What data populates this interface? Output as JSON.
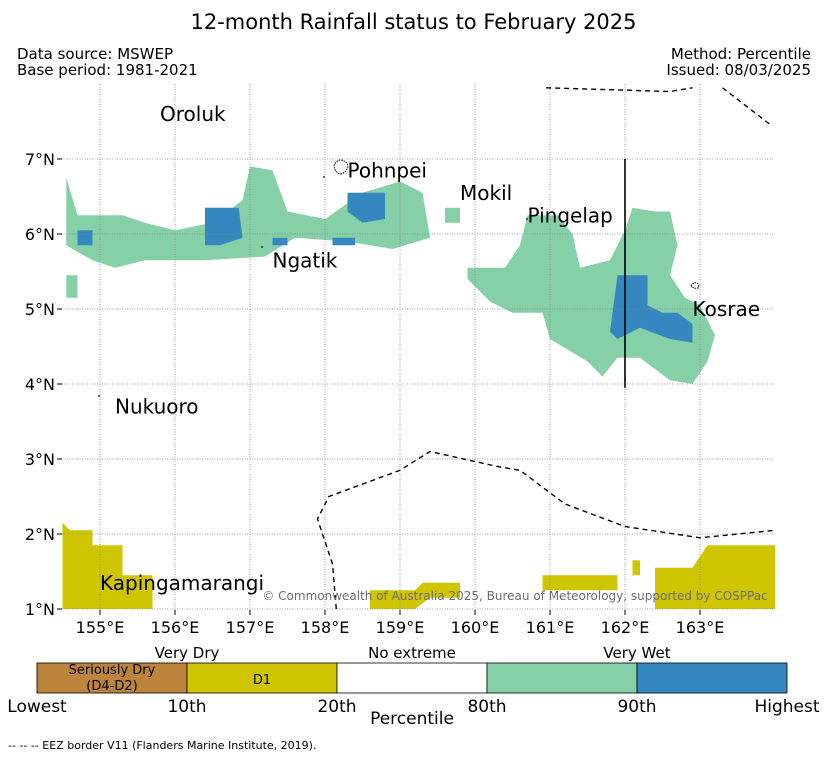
{
  "title": "12-month Rainfall status to February 2025",
  "data_source": "Data source: MSWEP",
  "base_period": "Base period: 1981-2021",
  "method": "Method: Percentile",
  "issued": "Issued: 08/03/2025",
  "copyright": "© Commonwealth of Australia 2025, Bureau of Meteorology, supported by COSPPac",
  "footnote": "--  --  -- EEZ border V11 (Flanders Marine Institute, 2019).",
  "map": {
    "lon_range": [
      154.5,
      164.0
    ],
    "lat_range": [
      0.95,
      7.95
    ],
    "lon_ticks": [
      155,
      156,
      157,
      158,
      159,
      160,
      161,
      162,
      163
    ],
    "lon_tick_labels": [
      "155°E",
      "156°E",
      "157°E",
      "158°E",
      "159°E",
      "160°E",
      "161°E",
      "162°E",
      "163°E"
    ],
    "lat_ticks": [
      1,
      2,
      3,
      4,
      5,
      6,
      7
    ],
    "lat_tick_labels": [
      "1°N",
      "2°N",
      "3°N",
      "4°N",
      "5°N",
      "6°N",
      "7°N"
    ],
    "places": [
      {
        "name": "Oroluk",
        "lon": 155.8,
        "lat": 7.6
      },
      {
        "name": "Pohnpei",
        "lon": 158.3,
        "lat": 6.85
      },
      {
        "name": "Mokil",
        "lon": 159.8,
        "lat": 6.55
      },
      {
        "name": "Pingelap",
        "lon": 160.7,
        "lat": 6.25
      },
      {
        "name": "Ngatik",
        "lon": 157.3,
        "lat": 5.65
      },
      {
        "name": "Kosrae",
        "lon": 162.9,
        "lat": 5.0
      },
      {
        "name": "Nukuoro",
        "lon": 155.2,
        "lat": 3.7
      },
      {
        "name": "Kapingamarangi",
        "lon": 155.0,
        "lat": 1.35
      }
    ],
    "rainfall_regions": [
      {
        "category": "80th",
        "color": "#86d0a8",
        "polygon": [
          [
            154.55,
            6.75
          ],
          [
            154.7,
            6.25
          ],
          [
            155.3,
            6.25
          ],
          [
            155.6,
            6.15
          ],
          [
            156.0,
            6.05
          ],
          [
            156.5,
            6.15
          ],
          [
            156.9,
            6.45
          ],
          [
            157.0,
            6.9
          ],
          [
            157.3,
            6.85
          ],
          [
            157.5,
            6.3
          ],
          [
            158.0,
            6.2
          ],
          [
            158.5,
            6.55
          ],
          [
            159.0,
            6.7
          ],
          [
            159.3,
            6.55
          ],
          [
            159.4,
            5.95
          ],
          [
            158.9,
            5.8
          ],
          [
            158.3,
            5.9
          ],
          [
            157.6,
            5.95
          ],
          [
            157.2,
            5.7
          ],
          [
            156.4,
            5.65
          ],
          [
            155.6,
            5.65
          ],
          [
            155.2,
            5.55
          ],
          [
            154.9,
            5.65
          ],
          [
            154.55,
            5.85
          ]
        ]
      },
      {
        "category": "80th",
        "color": "#86d0a8",
        "polygon": [
          [
            154.55,
            5.45
          ],
          [
            154.7,
            5.45
          ],
          [
            154.7,
            5.15
          ],
          [
            154.55,
            5.15
          ]
        ]
      },
      {
        "category": "80th",
        "color": "#86d0a8",
        "polygon": [
          [
            159.6,
            6.35
          ],
          [
            159.8,
            6.35
          ],
          [
            159.8,
            6.15
          ],
          [
            159.6,
            6.15
          ]
        ]
      },
      {
        "category": "80th",
        "color": "#86d0a8",
        "polygon": [
          [
            159.9,
            5.55
          ],
          [
            160.4,
            5.55
          ],
          [
            160.6,
            5.85
          ],
          [
            160.7,
            6.25
          ],
          [
            161.1,
            6.25
          ],
          [
            161.3,
            6.0
          ],
          [
            161.4,
            5.55
          ],
          [
            161.8,
            5.65
          ],
          [
            162.0,
            6.05
          ],
          [
            162.1,
            6.35
          ],
          [
            162.4,
            6.3
          ],
          [
            162.6,
            6.3
          ],
          [
            162.7,
            5.85
          ],
          [
            162.6,
            5.45
          ],
          [
            162.8,
            5.15
          ],
          [
            163.0,
            5.05
          ],
          [
            163.2,
            4.65
          ],
          [
            163.1,
            4.3
          ],
          [
            162.9,
            4.0
          ],
          [
            162.6,
            4.05
          ],
          [
            162.2,
            4.35
          ],
          [
            161.9,
            4.35
          ],
          [
            161.7,
            4.1
          ],
          [
            161.5,
            4.3
          ],
          [
            161.0,
            4.6
          ],
          [
            160.9,
            4.95
          ],
          [
            160.5,
            4.95
          ],
          [
            160.2,
            5.1
          ],
          [
            159.9,
            5.4
          ]
        ]
      }
    ],
    "wet_cells": [
      {
        "category": "90th",
        "color": "#3588bf",
        "polygon": [
          [
            154.7,
            6.05
          ],
          [
            154.9,
            6.05
          ],
          [
            154.9,
            5.85
          ],
          [
            154.7,
            5.85
          ]
        ]
      },
      {
        "category": "90th",
        "color": "#3588bf",
        "polygon": [
          [
            156.4,
            6.35
          ],
          [
            156.85,
            6.35
          ],
          [
            156.9,
            5.95
          ],
          [
            156.6,
            5.85
          ],
          [
            156.4,
            5.85
          ]
        ]
      },
      {
        "category": "90th",
        "color": "#3588bf",
        "polygon": [
          [
            158.3,
            6.55
          ],
          [
            158.8,
            6.55
          ],
          [
            158.8,
            6.2
          ],
          [
            158.5,
            6.15
          ],
          [
            158.3,
            6.3
          ]
        ]
      },
      {
        "category": "90th",
        "color": "#3588bf",
        "polygon": [
          [
            157.3,
            5.95
          ],
          [
            157.5,
            5.95
          ],
          [
            157.5,
            5.85
          ],
          [
            157.3,
            5.85
          ]
        ]
      },
      {
        "category": "90th",
        "color": "#3588bf",
        "polygon": [
          [
            158.1,
            5.95
          ],
          [
            158.4,
            5.95
          ],
          [
            158.4,
            5.85
          ],
          [
            158.1,
            5.85
          ]
        ]
      },
      {
        "category": "90th",
        "color": "#3588bf",
        "polygon": [
          [
            161.9,
            5.45
          ],
          [
            162.3,
            5.45
          ],
          [
            162.3,
            5.05
          ],
          [
            162.5,
            4.95
          ],
          [
            162.7,
            4.95
          ],
          [
            162.9,
            4.8
          ],
          [
            162.9,
            4.55
          ],
          [
            162.6,
            4.6
          ],
          [
            162.2,
            4.75
          ],
          [
            161.9,
            4.6
          ],
          [
            161.8,
            4.7
          ]
        ]
      }
    ],
    "dry_regions": [
      {
        "category": "D1",
        "color": "#cfc601",
        "polygon": [
          [
            154.5,
            2.15
          ],
          [
            154.6,
            2.05
          ],
          [
            154.9,
            2.05
          ],
          [
            154.9,
            1.85
          ],
          [
            155.3,
            1.85
          ],
          [
            155.3,
            1.45
          ],
          [
            155.7,
            1.45
          ],
          [
            155.7,
            1.0
          ],
          [
            154.5,
            1.0
          ]
        ]
      },
      {
        "category": "D1",
        "color": "#cfc601",
        "polygon": [
          [
            158.6,
            1.25
          ],
          [
            159.2,
            1.25
          ],
          [
            159.3,
            1.35
          ],
          [
            159.8,
            1.35
          ],
          [
            159.8,
            1.15
          ],
          [
            159.4,
            1.15
          ],
          [
            159.2,
            1.0
          ],
          [
            158.6,
            1.0
          ]
        ]
      },
      {
        "category": "D1",
        "color": "#cfc601",
        "polygon": [
          [
            160.9,
            1.45
          ],
          [
            161.9,
            1.45
          ],
          [
            161.9,
            1.25
          ],
          [
            160.9,
            1.25
          ]
        ]
      },
      {
        "category": "D1",
        "color": "#cfc601",
        "polygon": [
          [
            162.1,
            1.65
          ],
          [
            162.2,
            1.65
          ],
          [
            162.2,
            1.45
          ],
          [
            162.1,
            1.45
          ]
        ]
      },
      {
        "category": "D1",
        "color": "#cfc601",
        "polygon": [
          [
            162.4,
            1.55
          ],
          [
            162.9,
            1.55
          ],
          [
            163.1,
            1.85
          ],
          [
            164.0,
            1.85
          ],
          [
            164.0,
            1.0
          ],
          [
            162.4,
            1.0
          ]
        ]
      }
    ],
    "eez_borders": [
      [
        [
          160.95,
          7.95
        ],
        [
          162.6,
          7.9
        ],
        [
          162.9,
          7.95
        ]
      ],
      [
        [
          163.3,
          7.95
        ],
        [
          163.95,
          7.45
        ]
      ],
      [
        [
          158.15,
          1.0
        ],
        [
          158.1,
          1.6
        ],
        [
          157.9,
          2.2
        ],
        [
          158.05,
          2.5
        ],
        [
          159.0,
          2.85
        ],
        [
          159.4,
          3.1
        ],
        [
          160.3,
          2.9
        ],
        [
          160.6,
          2.85
        ],
        [
          161.2,
          2.4
        ],
        [
          162.0,
          2.1
        ],
        [
          163.0,
          1.95
        ],
        [
          164.0,
          2.05
        ]
      ]
    ],
    "vertical_line_lon": 162.0,
    "vertical_line_lat": [
      3.95,
      7.0
    ]
  },
  "legend": {
    "categories": [
      {
        "name": "Seriously Dry\n(D4-D2)",
        "color": "#bd843b"
      },
      {
        "name": "D1",
        "color": "#cfc601"
      },
      {
        "name": "",
        "color": "#ffffff"
      },
      {
        "name": "",
        "color": "#86d0a8"
      },
      {
        "name": "",
        "color": "#3588bf"
      }
    ],
    "groups": [
      "Very Dry",
      "No extreme",
      "Very Wet"
    ],
    "tick_labels": [
      "Lowest",
      "10th",
      "20th",
      "80th",
      "90th",
      "Highest"
    ],
    "axis_label": "Percentile"
  }
}
